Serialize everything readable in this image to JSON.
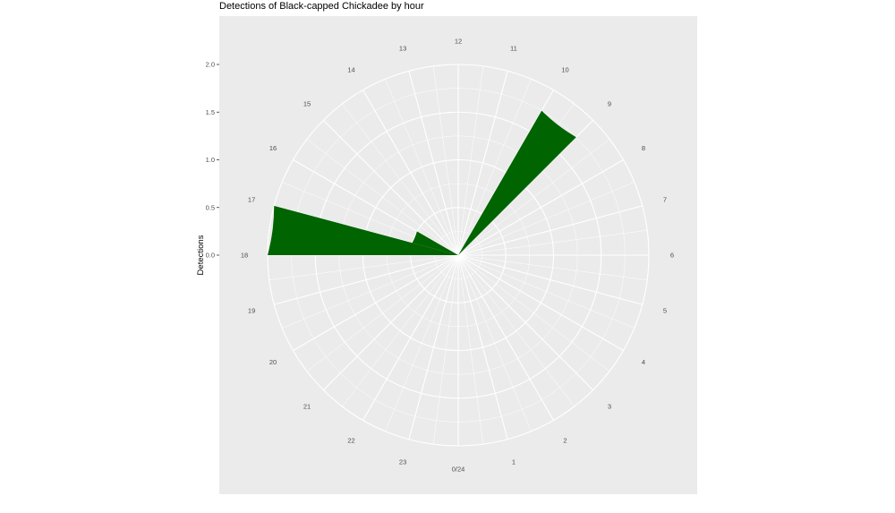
{
  "chart_data": {
    "type": "bar",
    "coord": "polar",
    "title": "Detections of Black-capped Chickadee by hour",
    "xlabel": "",
    "ylabel": "Detections",
    "x_ticks": [
      "0/24",
      "1",
      "2",
      "3",
      "4",
      "5",
      "6",
      "7",
      "8",
      "9",
      "10",
      "11",
      "12",
      "13",
      "14",
      "15",
      "16",
      "17",
      "18",
      "19",
      "20",
      "21",
      "22",
      "23"
    ],
    "y_ticks": [
      "0.0",
      "0.5",
      "1.0",
      "1.5",
      "2.0"
    ],
    "ylim": [
      0,
      2
    ],
    "grid": true,
    "bar_color": "#006400",
    "panel_color": "#ebebeb",
    "grid_color": "#ffffff",
    "bars": [
      {
        "hour": 9.5,
        "value": 1.75
      },
      {
        "hour": 16.5,
        "value": 0.5
      },
      {
        "hour": 17.5,
        "value": 2.0
      }
    ]
  }
}
